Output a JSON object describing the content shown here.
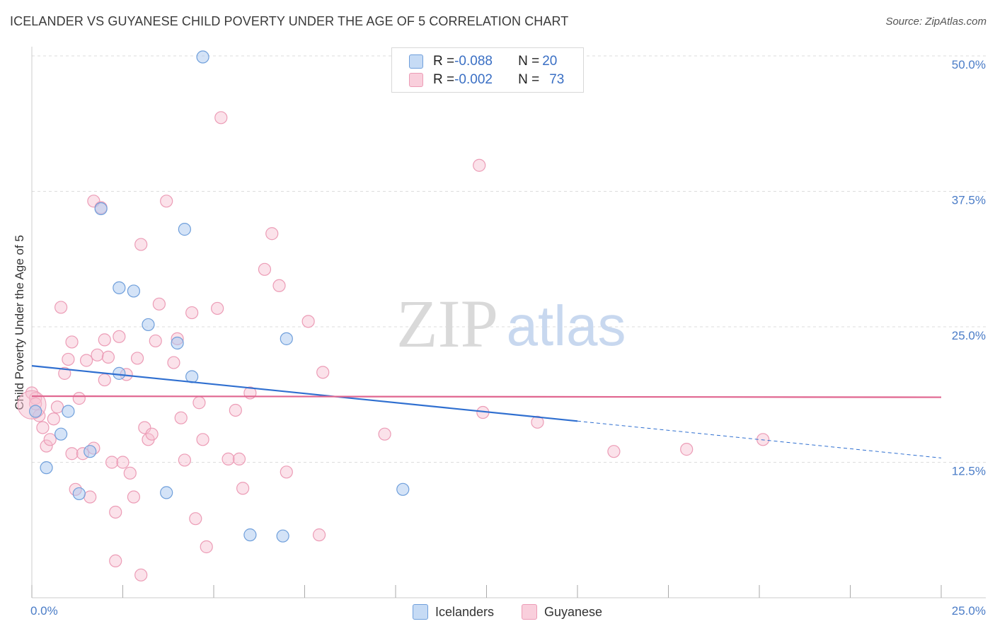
{
  "header": {
    "title": "ICELANDER VS GUYANESE CHILD POVERTY UNDER THE AGE OF 5 CORRELATION CHART",
    "source": "Source: ZipAtlas.com"
  },
  "legend_top": {
    "rows": [
      {
        "r_label": "R = ",
        "r_value": "-0.088",
        "n_label": "N = ",
        "n_value": "20"
      },
      {
        "r_label": "R = ",
        "r_value": "-0.002",
        "n_label": "N = ",
        "n_value": "73"
      }
    ]
  },
  "legend_bottom": {
    "items": [
      "Icelanders",
      "Guyanese"
    ]
  },
  "colors": {
    "icelanders_fill": "#a9c8ef",
    "icelanders_stroke": "#6f9fdb",
    "icelanders_line": "#2f6fd0",
    "guyanese_fill": "#f6bfd0",
    "guyanese_stroke": "#ec9cb6",
    "guyanese_line": "#e06690",
    "tick_text": "#4a7cc7",
    "grid": "#dddddd"
  },
  "watermark": {
    "zip": "ZIP",
    "atlas": "atlas"
  },
  "chart_data": {
    "type": "scatter",
    "title": "ICELANDER VS GUYANESE CHILD POVERTY UNDER THE AGE OF 5 CORRELATION CHART",
    "xlabel": "",
    "ylabel": "Child Poverty Under the Age of 5",
    "xlim": [
      0,
      25
    ],
    "ylim": [
      0,
      50
    ],
    "x_tick_labels": [
      "0.0%",
      "25.0%"
    ],
    "y_ticks": [
      12.5,
      25.0,
      37.5,
      50.0
    ],
    "y_tick_labels": [
      "12.5%",
      "25.0%",
      "37.5%",
      "50.0%"
    ],
    "grid": true,
    "legend_position": "top-center",
    "series": [
      {
        "name": "Icelanders",
        "r": -0.088,
        "n": 20,
        "trend": {
          "x0": 0,
          "y0": 21.4,
          "x1": 15,
          "y1": 16.3,
          "dash_to_x": 25,
          "dash_to_y": 12.9
        },
        "points": [
          [
            0.1,
            17.2
          ],
          [
            0.4,
            12.0
          ],
          [
            0.8,
            15.1
          ],
          [
            1.0,
            17.2
          ],
          [
            1.3,
            9.6
          ],
          [
            1.6,
            13.5
          ],
          [
            1.9,
            35.9
          ],
          [
            2.4,
            20.7
          ],
          [
            2.4,
            28.6
          ],
          [
            2.8,
            28.3
          ],
          [
            3.2,
            25.2
          ],
          [
            3.7,
            9.7
          ],
          [
            4.0,
            23.5
          ],
          [
            4.2,
            34.0
          ],
          [
            4.4,
            20.4
          ],
          [
            4.7,
            49.9
          ],
          [
            6.0,
            5.8
          ],
          [
            6.9,
            5.7
          ],
          [
            7.0,
            23.9
          ],
          [
            10.2,
            10.0
          ]
        ]
      },
      {
        "name": "Guyanese",
        "r": -0.002,
        "n": 73,
        "trend": {
          "x0": 0,
          "y0": 18.6,
          "x1": 25,
          "y1": 18.5
        },
        "points": [
          [
            0.0,
            18.9
          ],
          [
            0.1,
            18.4
          ],
          [
            0.2,
            16.8
          ],
          [
            0.3,
            15.7
          ],
          [
            0.4,
            14.0
          ],
          [
            0.5,
            14.6
          ],
          [
            0.6,
            16.5
          ],
          [
            0.7,
            17.6
          ],
          [
            0.8,
            26.8
          ],
          [
            0.9,
            20.7
          ],
          [
            1.0,
            22.0
          ],
          [
            1.1,
            23.6
          ],
          [
            1.1,
            13.3
          ],
          [
            1.2,
            10.0
          ],
          [
            1.3,
            18.4
          ],
          [
            1.4,
            13.3
          ],
          [
            1.5,
            21.9
          ],
          [
            1.6,
            9.3
          ],
          [
            1.7,
            13.8
          ],
          [
            1.7,
            36.6
          ],
          [
            1.8,
            22.4
          ],
          [
            1.9,
            36.0
          ],
          [
            2.0,
            20.1
          ],
          [
            2.0,
            23.8
          ],
          [
            2.1,
            22.2
          ],
          [
            2.2,
            12.5
          ],
          [
            2.3,
            7.9
          ],
          [
            2.3,
            3.4
          ],
          [
            2.4,
            24.1
          ],
          [
            2.5,
            12.5
          ],
          [
            2.6,
            20.6
          ],
          [
            2.7,
            11.5
          ],
          [
            2.8,
            9.3
          ],
          [
            2.9,
            22.1
          ],
          [
            3.0,
            32.6
          ],
          [
            3.0,
            2.1
          ],
          [
            3.1,
            15.7
          ],
          [
            3.2,
            14.6
          ],
          [
            3.3,
            15.1
          ],
          [
            3.4,
            23.7
          ],
          [
            3.5,
            27.1
          ],
          [
            3.7,
            36.6
          ],
          [
            3.9,
            21.7
          ],
          [
            4.0,
            23.9
          ],
          [
            4.1,
            16.6
          ],
          [
            4.2,
            12.7
          ],
          [
            4.4,
            26.3
          ],
          [
            4.5,
            7.3
          ],
          [
            4.6,
            18.0
          ],
          [
            4.7,
            14.6
          ],
          [
            4.8,
            4.7
          ],
          [
            5.1,
            26.7
          ],
          [
            5.2,
            44.3
          ],
          [
            5.4,
            12.8
          ],
          [
            5.6,
            17.3
          ],
          [
            5.7,
            12.8
          ],
          [
            5.8,
            10.1
          ],
          [
            6.0,
            18.9
          ],
          [
            6.4,
            30.3
          ],
          [
            6.6,
            33.6
          ],
          [
            6.8,
            28.8
          ],
          [
            7.0,
            11.6
          ],
          [
            7.6,
            25.5
          ],
          [
            7.9,
            5.8
          ],
          [
            8.0,
            20.8
          ],
          [
            9.7,
            15.1
          ],
          [
            12.3,
            39.9
          ],
          [
            12.4,
            17.1
          ],
          [
            13.9,
            16.2
          ],
          [
            16.0,
            13.5
          ],
          [
            18.0,
            13.7
          ],
          [
            20.1,
            14.6
          ],
          [
            0.1,
            17.9
          ]
        ]
      }
    ]
  }
}
